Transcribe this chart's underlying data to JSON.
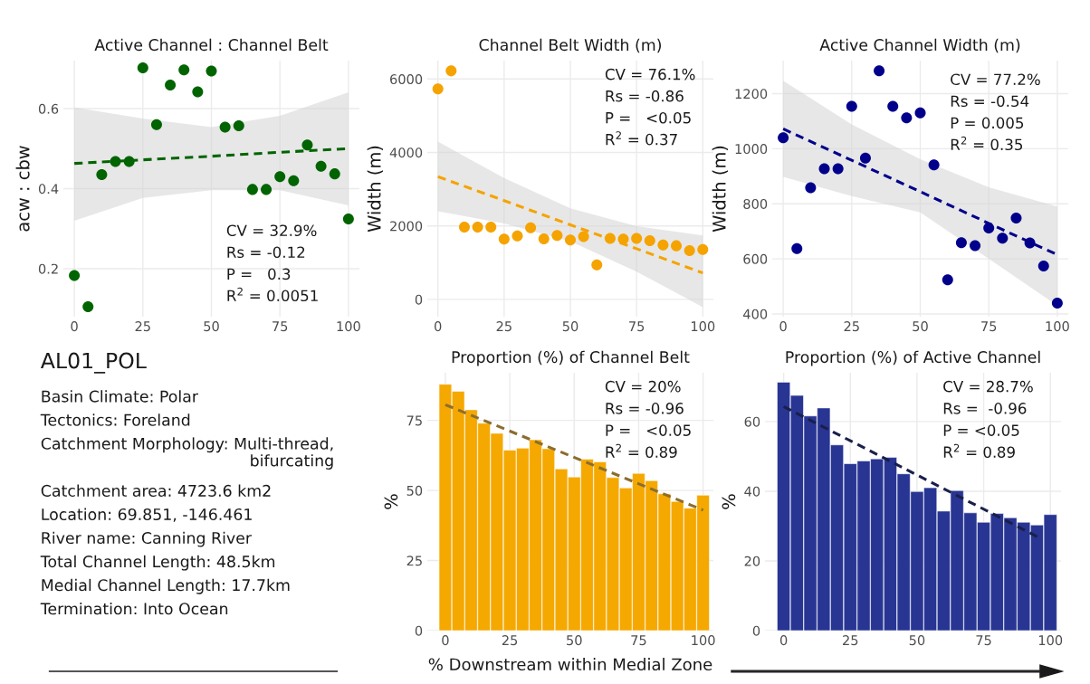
{
  "chart_data": [
    {
      "type": "scatter",
      "title": "Active Channel : Channel Belt",
      "ylabel": "acw : cbw",
      "xlim": [
        -4,
        104
      ],
      "ylim": [
        0.08,
        0.72
      ],
      "xticks": [
        0,
        25,
        50,
        75,
        100
      ],
      "yticks": [
        0.2,
        0.4,
        0.6
      ],
      "grid": true,
      "annotations": [
        "CV = 32.9%",
        "Rs = -0.12",
        "P =   0.3",
        "R$^{2}$ = 0.0051"
      ],
      "series": [
        {
          "type": "scatter",
          "color": "#006400",
          "marker": "circle",
          "x": [
            0,
            5,
            10,
            15,
            20,
            25,
            30,
            35,
            40,
            45,
            50,
            55,
            60,
            65,
            70,
            75,
            80,
            85,
            90,
            95,
            100
          ],
          "values": [
            0.183,
            0.105,
            0.435,
            0.468,
            0.468,
            0.702,
            0.56,
            0.659,
            0.697,
            0.642,
            0.694,
            0.554,
            0.557,
            0.398,
            0.398,
            0.43,
            0.42,
            0.509,
            0.456,
            0.437,
            0.324
          ]
        },
        {
          "type": "line",
          "color": "#006400",
          "line_style": "dashed",
          "x": [
            0,
            25,
            50,
            75,
            100
          ],
          "values": [
            0.463,
            0.472,
            0.481,
            0.491,
            0.5
          ],
          "lower": [
            0.32,
            0.377,
            0.396,
            0.396,
            0.358
          ],
          "upper": [
            0.603,
            0.575,
            0.554,
            0.582,
            0.641
          ]
        }
      ]
    },
    {
      "type": "scatter",
      "title": "Channel Belt Width (m)",
      "ylabel": "Width (m)",
      "xlim": [
        -4,
        104
      ],
      "ylim": [
        -470,
        6500
      ],
      "xticks": [
        0,
        25,
        50,
        75,
        100
      ],
      "yticks": [
        0,
        2000,
        4000,
        6000
      ],
      "grid": true,
      "annotations": [
        "CV = 76.1%",
        "Rs = -0.86",
        "P =   <0.05",
        "R$^{2}$ = 0.37"
      ],
      "series": [
        {
          "type": "scatter",
          "color": "#f5a300",
          "marker": "circle",
          "x": [
            0,
            5,
            10,
            15,
            20,
            25,
            30,
            35,
            40,
            45,
            50,
            55,
            60,
            65,
            70,
            75,
            80,
            85,
            90,
            95,
            100
          ],
          "values": [
            5730,
            6220,
            1970,
            1970,
            1970,
            1640,
            1730,
            1950,
            1650,
            1740,
            1620,
            1710,
            940,
            1660,
            1640,
            1660,
            1600,
            1480,
            1460,
            1330,
            1360
          ]
        },
        {
          "type": "line",
          "color": "#f5a300",
          "line_style": "dashed",
          "x": [
            0,
            25,
            50,
            75,
            100
          ],
          "values": [
            3340,
            2690,
            2030,
            1380,
            720
          ],
          "lower": [
            2400,
            2065,
            1580,
            755,
            -210
          ],
          "upper": [
            4295,
            3305,
            2480,
            1995,
            1740
          ]
        }
      ]
    },
    {
      "type": "scatter",
      "title": "Active Channel Width (m)",
      "ylabel": "Width (m)",
      "xlim": [
        -4,
        104
      ],
      "ylim": [
        390,
        1320
      ],
      "xticks": [
        0,
        25,
        50,
        75,
        100
      ],
      "yticks": [
        400,
        600,
        800,
        1000,
        1200
      ],
      "grid": true,
      "annotations": [
        "CV = 77.2%",
        "Rs = -0.54",
        "P = 0.005",
        "R$^{2}$ = 0.35"
      ],
      "series": [
        {
          "type": "scatter",
          "color": "#00008b",
          "marker": "circle",
          "x": [
            0,
            5,
            10,
            15,
            20,
            25,
            30,
            35,
            40,
            45,
            50,
            55,
            60,
            65,
            70,
            75,
            80,
            85,
            90,
            95,
            100
          ],
          "values": [
            1040,
            637,
            858,
            927,
            927,
            1154,
            966,
            1283,
            1154,
            1112,
            1130,
            941,
            524,
            659,
            648,
            712,
            675,
            748,
            658,
            574,
            439
          ]
        },
        {
          "type": "line",
          "color": "#00008b",
          "line_style": "dashed",
          "x": [
            0,
            25,
            50,
            75,
            100
          ],
          "values": [
            1072,
            958,
            844,
            729,
            615
          ],
          "lower": [
            898,
            828,
            769,
            600,
            430
          ],
          "upper": [
            1247,
            1088,
            962,
            860,
            790
          ]
        }
      ]
    },
    {
      "type": "other",
      "title": "AL01_POL",
      "annotations": [
        "Basin Climate: Polar",
        "Tectonics: Foreland",
        "Catchment Morphology: Multi-thread,\nbifurcating",
        "Catchment area: 4723.6 km2",
        "Location: 69.851, -146.461",
        "River name: Canning River",
        "Total Channel Length: 48.5km",
        "Medial Channel Length: 17.7km",
        "Termination: Into Ocean"
      ]
    },
    {
      "type": "bar",
      "title": "Proportion (%) of Channel Belt",
      "ylabel": "%",
      "xlabel": "% Downstream within Medial Zone",
      "xlim": [
        -7,
        104
      ],
      "ylim": [
        0,
        92
      ],
      "xticks": [
        0,
        25,
        50,
        75,
        100
      ],
      "yticks": [
        0,
        25,
        50,
        75
      ],
      "grid": true,
      "annotations": [
        "CV = 20%",
        "Rs = -0.96",
        "P =   <0.05",
        "R$^{2}$ = 0.89"
      ],
      "series": [
        {
          "type": "bar",
          "color": "#f5a800",
          "x": [
            0,
            5,
            10,
            15,
            20,
            25,
            30,
            35,
            40,
            45,
            50,
            55,
            60,
            65,
            70,
            75,
            80,
            85,
            90,
            95,
            100
          ],
          "values": [
            87.9,
            85.4,
            78.8,
            74.0,
            70.4,
            64.4,
            65.1,
            68.1,
            64.9,
            57.7,
            54.8,
            61.2,
            60.2,
            54.6,
            50.9,
            56.1,
            53.5,
            48.8,
            46.1,
            43.7,
            48.3
          ]
        },
        {
          "type": "line",
          "color": "#8b6d2f",
          "line_style": "dashed",
          "x": [
            0,
            100
          ],
          "values": [
            80.6,
            43.0
          ]
        }
      ]
    },
    {
      "type": "bar",
      "title": "Proportion (%) of Active Channel",
      "ylabel": "%",
      "xlim": [
        -7,
        104
      ],
      "ylim": [
        0,
        74
      ],
      "xticks": [
        0,
        25,
        50,
        75,
        100
      ],
      "yticks": [
        0,
        20,
        40,
        60
      ],
      "grid": true,
      "annotations": [
        "CV = 28.7%",
        "Rs =  -0.96",
        "P = <0.05",
        "R$^{2}$ = 0.89"
      ],
      "series": [
        {
          "type": "bar",
          "color": "#283593",
          "x": [
            0,
            5,
            10,
            15,
            20,
            25,
            30,
            35,
            40,
            45,
            50,
            55,
            60,
            65,
            70,
            75,
            80,
            85,
            90,
            95,
            100
          ],
          "values": [
            71.3,
            67.5,
            61.6,
            63.9,
            53.3,
            47.9,
            48.7,
            49.3,
            49.7,
            45.0,
            39.9,
            41.0,
            34.3,
            40.2,
            33.8,
            31.1,
            33.6,
            32.4,
            31.1,
            30.3,
            33.3
          ]
        },
        {
          "type": "line",
          "color": "#1a1f4a",
          "line_style": "dashed",
          "x": [
            0,
            96
          ],
          "values": [
            64.3,
            26.6
          ]
        }
      ]
    }
  ]
}
